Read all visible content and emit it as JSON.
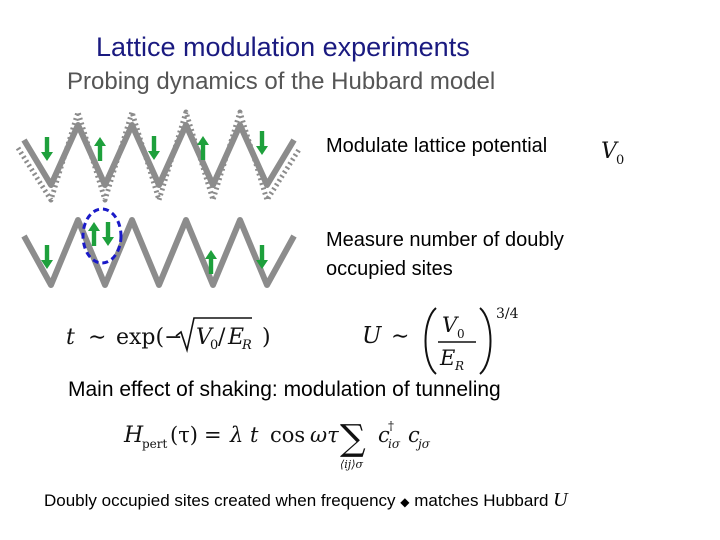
{
  "title": "Lattice modulation experiments",
  "subtitle": "Probing dynamics of the Hubbard model",
  "steps": {
    "modulate": "Modulate lattice potential",
    "measure_line1": "Measure number of doubly",
    "measure_line2": "occupied sites"
  },
  "main_effect": "Main effect of shaking: modulation of tunneling",
  "bottom_caption": {
    "text": "Doubly occupied sites created when frequency",
    "bullet": "◆",
    "tail": "matches Hubbard",
    "symbol": "U"
  },
  "equations": {
    "tunneling": "t ∼ exp(−√(V₀/E_R))",
    "interaction": "U ∼ (V₀/E_R)^(3/4)",
    "perturbation": "H_pert(τ) = λ t cos ωτ Σ c†_iσ c_jσ"
  },
  "colors": {
    "title": "#1a1a80",
    "lattice": "#8c8c8c",
    "arrow": "#1ea03c",
    "highlight": "#1a1ac8"
  }
}
